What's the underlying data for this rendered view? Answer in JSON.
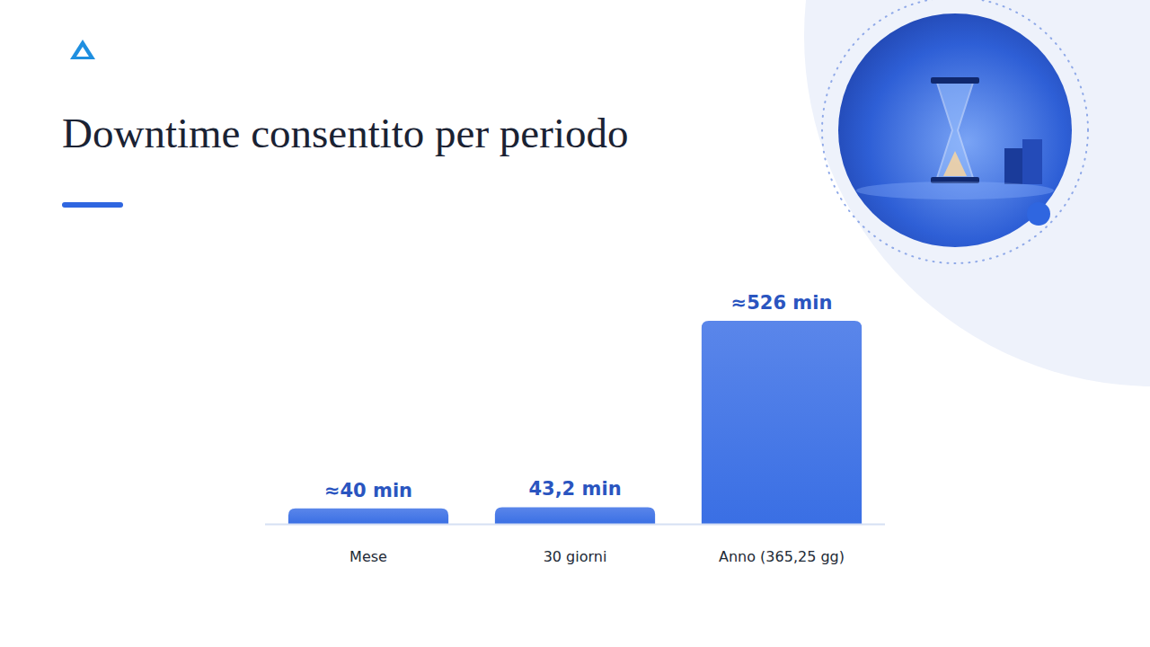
{
  "chart_data": {
    "type": "bar",
    "title": "Downtime consentito per periodo",
    "categories": [
      "Mese",
      "30 giorni",
      "Anno (365,25 gg)"
    ],
    "values": [
      40,
      43.2,
      526
    ],
    "value_labels": [
      "≈40 min",
      "43,2 min",
      "≈526 min"
    ],
    "color": "#3a6fe4",
    "ylim": [
      0,
      526
    ],
    "data_labels": true,
    "tick_labels": "x",
    "grid": false
  }
}
